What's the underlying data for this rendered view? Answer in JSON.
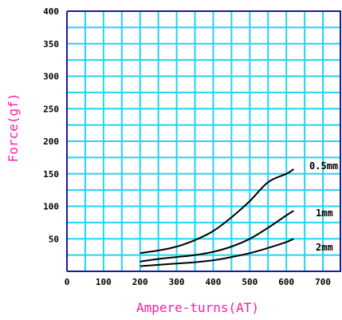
{
  "chart_data": {
    "type": "line",
    "xlabel": "Ampere-turns(AT)",
    "ylabel": "Force(gf)",
    "xlim": [
      0,
      750
    ],
    "ylim": [
      0,
      400
    ],
    "x_ticks": [
      "0",
      "100",
      "200",
      "300",
      "400",
      "500",
      "600",
      "700"
    ],
    "y_ticks": [
      "50",
      "100",
      "150",
      "200",
      "250",
      "300",
      "350",
      "400"
    ],
    "grid": true,
    "colors": {
      "grid": "#22d4f0",
      "axis": "#1a1aa0",
      "line": "#000000",
      "title": "#ff1aa8"
    },
    "series": [
      {
        "name": "0.5mm",
        "x": [
          200,
          250,
          300,
          350,
          400,
          450,
          500,
          550,
          600,
          620
        ],
        "y": [
          28,
          32,
          38,
          48,
          62,
          83,
          108,
          137,
          150,
          157
        ]
      },
      {
        "name": "1mm",
        "x": [
          200,
          250,
          300,
          350,
          400,
          450,
          500,
          550,
          600,
          620
        ],
        "y": [
          15,
          19,
          22,
          25,
          30,
          38,
          50,
          67,
          86,
          93
        ]
      },
      {
        "name": "2mm",
        "x": [
          200,
          250,
          300,
          350,
          400,
          450,
          500,
          550,
          600,
          620
        ],
        "y": [
          8,
          10,
          12,
          14,
          17,
          22,
          28,
          36,
          45,
          50
        ]
      }
    ]
  }
}
